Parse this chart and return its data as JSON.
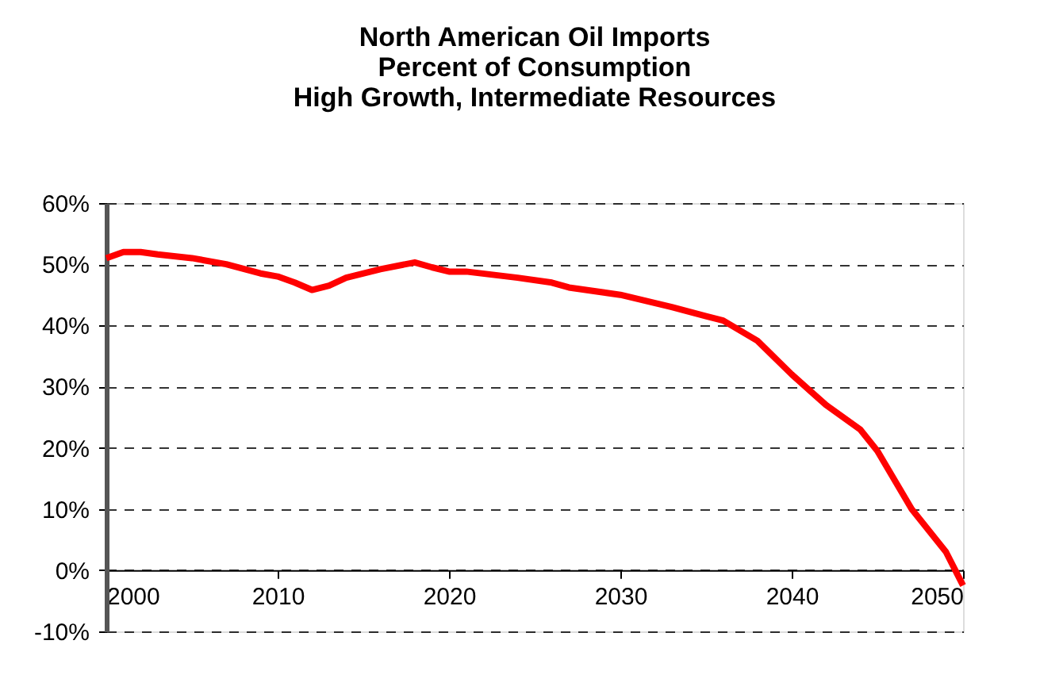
{
  "chart_data": {
    "type": "line",
    "title": [
      "North American Oil Imports",
      "Percent of Consumption",
      "High Growth, Intermediate Resources"
    ],
    "x": [
      2000,
      2001,
      2002,
      2003,
      2005,
      2007,
      2009,
      2010,
      2011,
      2012,
      2013,
      2014,
      2016,
      2018,
      2019,
      2020,
      2021,
      2024,
      2026,
      2027,
      2030,
      2033,
      2035,
      2036,
      2038,
      2040,
      2042,
      2044,
      2045,
      2047,
      2049,
      2050
    ],
    "series": [
      {
        "color": "#ff0000",
        "values": [
          51,
          52,
          52,
          51.6,
          51,
          50,
          48.5,
          48,
          47,
          45.8,
          46.5,
          47.8,
          49.2,
          50.3,
          49.5,
          48.8,
          48.8,
          47.8,
          47,
          46.2,
          45,
          43,
          41.5,
          40.8,
          37.5,
          32,
          27,
          23,
          19.5,
          10,
          3,
          -2.5
        ]
      }
    ],
    "xlim": [
      2000,
      2050
    ],
    "xticks": [
      2000,
      2010,
      2020,
      2030,
      2040,
      2050
    ],
    "ylim": [
      -10,
      60
    ],
    "yticks": [
      {
        "value": -10,
        "label": "-10%"
      },
      {
        "value": 0,
        "label": "0%"
      },
      {
        "value": 10,
        "label": "10%"
      },
      {
        "value": 20,
        "label": "20%"
      },
      {
        "value": 30,
        "label": "30%"
      },
      {
        "value": 40,
        "label": "40%"
      },
      {
        "value": 50,
        "label": "50%"
      },
      {
        "value": 60,
        "label": "60%"
      }
    ],
    "grid": "y",
    "marker": "none",
    "line_style": "solid"
  }
}
